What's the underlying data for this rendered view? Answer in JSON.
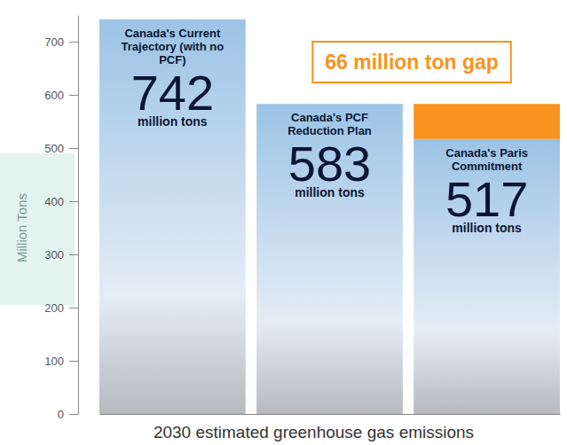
{
  "chart_data": {
    "type": "bar",
    "categories": [
      "Canada's Current Trajectory (with no PCF)",
      "Canada's PCF Reduction Plan",
      "Canada's Paris Commitment"
    ],
    "values": [
      742,
      583,
      517
    ],
    "unit_label": "million tons",
    "annotations": [
      "66 million ton gap"
    ],
    "ylabel": "Million Tons",
    "xlabel": "2030 estimated greenhouse gas emissions",
    "color": "#9cc3e6",
    "ylim": [
      0,
      750
    ],
    "yticks": [
      0,
      100,
      200,
      300,
      400,
      500,
      600,
      700
    ],
    "data_labels": true,
    "tick_labels": "y",
    "grid": false
  }
}
